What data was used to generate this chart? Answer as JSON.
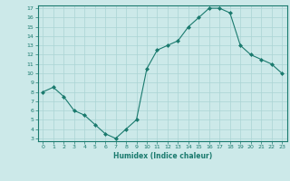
{
  "xlabel": "Humidex (Indice chaleur)",
  "x": [
    0,
    1,
    2,
    3,
    4,
    5,
    6,
    7,
    8,
    9,
    10,
    11,
    12,
    13,
    14,
    15,
    16,
    17,
    18,
    19,
    20,
    21,
    22,
    23
  ],
  "y": [
    8,
    8.5,
    7.5,
    6,
    5.5,
    4.5,
    3.5,
    3,
    4,
    5,
    10.5,
    12.5,
    13,
    13.5,
    15,
    16,
    17,
    17,
    16.5,
    13,
    12,
    11.5,
    11,
    10
  ],
  "line_color": "#1a7a6e",
  "marker_color": "#1a7a6e",
  "bg_color": "#cce9e9",
  "grid_color": "#aad4d4",
  "axis_label_color": "#1a7a6e",
  "tick_color": "#1a7a6e",
  "bottom_bar_color": "#5a9e9e",
  "ylim": [
    3,
    17
  ],
  "xlim": [
    -0.5,
    23.5
  ],
  "yticks": [
    3,
    4,
    5,
    6,
    7,
    8,
    9,
    10,
    11,
    12,
    13,
    14,
    15,
    16,
    17
  ],
  "xticks": [
    0,
    1,
    2,
    3,
    4,
    5,
    6,
    7,
    8,
    9,
    10,
    11,
    12,
    13,
    14,
    15,
    16,
    17,
    18,
    19,
    20,
    21,
    22,
    23
  ]
}
